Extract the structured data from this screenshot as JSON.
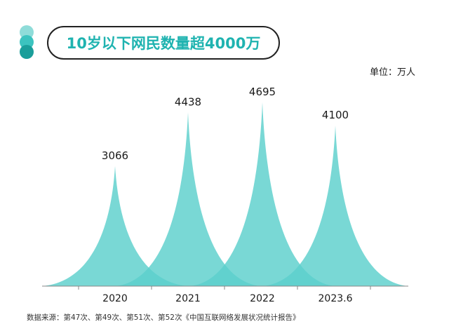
{
  "colors": {
    "accent": "#1fb3b0",
    "peak_fill": "#5ccfcc",
    "dot_light": "#8fdcd9",
    "dot_mid": "#3cc3bf",
    "dot_dark": "#1a9e9a",
    "axis": "#888888"
  },
  "chart_data": {
    "type": "area",
    "title": "10岁以下网民数量超4000万",
    "unit": "单位：万人",
    "categories": [
      "2020",
      "2021",
      "2022",
      "2023.6"
    ],
    "values": [
      3066,
      4438,
      4695,
      4100
    ],
    "data_labels": [
      "3066",
      "4438",
      "4695",
      "4100"
    ],
    "xlabel": "",
    "ylabel": "",
    "ylim": [
      0,
      5000
    ],
    "grid": false,
    "legend": "none"
  },
  "footer": {
    "source": "数据来源：第47次、第49次、第51次、第52次《中国互联网络发展状况统计报告》"
  }
}
